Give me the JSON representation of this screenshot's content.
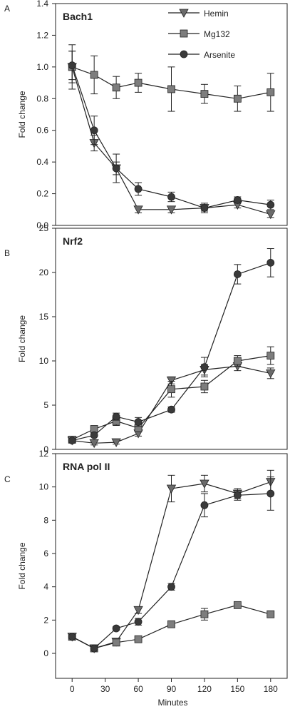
{
  "chart_data": [
    {
      "panel_letter": "A",
      "type": "line",
      "title": "Bach1",
      "ylabel": "Fold change",
      "xlabel": "",
      "x": [
        0,
        20,
        40,
        60,
        90,
        120,
        150,
        180
      ],
      "xlim": [
        -15,
        195
      ],
      "ylim": [
        0,
        1.4
      ],
      "yticks": [
        0.0,
        0.2,
        0.4,
        0.6,
        0.8,
        1.0,
        1.2,
        1.4
      ],
      "ytick_labels": [
        "0.0",
        "0.2",
        "0.4",
        "0.6",
        "0.8",
        "1.0",
        "1.2",
        "1.4"
      ],
      "show_xticks": false,
      "legend": "top-right",
      "grid": false,
      "series": [
        {
          "name": "Hemin",
          "marker": "triangle-down",
          "values": [
            1.0,
            0.52,
            0.36,
            0.1,
            0.1,
            0.11,
            0.13,
            0.07
          ],
          "errors": [
            0.1,
            0.05,
            0.04,
            0.02,
            0.02,
            0.02,
            0.02,
            0.02
          ]
        },
        {
          "name": "Mg132",
          "marker": "square",
          "values": [
            1.0,
            0.95,
            0.87,
            0.9,
            0.86,
            0.83,
            0.8,
            0.84
          ],
          "errors": [
            0.14,
            0.12,
            0.07,
            0.06,
            0.14,
            0.06,
            0.08,
            0.12
          ]
        },
        {
          "name": "Arsenite",
          "marker": "circle",
          "values": [
            1.01,
            0.6,
            0.36,
            0.23,
            0.18,
            0.11,
            0.16,
            0.13
          ],
          "errors": [
            0.09,
            0.09,
            0.09,
            0.04,
            0.03,
            0.03,
            0.02,
            0.03
          ]
        }
      ]
    },
    {
      "panel_letter": "B",
      "type": "line",
      "title": "Nrf2",
      "ylabel": "Fold change",
      "xlabel": "",
      "x": [
        0,
        20,
        40,
        60,
        90,
        120,
        150,
        180
      ],
      "xlim": [
        -15,
        195
      ],
      "ylim": [
        0,
        25
      ],
      "yticks": [
        0,
        5,
        10,
        15,
        20,
        25
      ],
      "ytick_labels": [
        "0",
        "5",
        "10",
        "15",
        "20",
        "25"
      ],
      "show_xticks": false,
      "grid": false,
      "series": [
        {
          "name": "Hemin",
          "marker": "triangle-down",
          "values": [
            1.0,
            0.7,
            0.8,
            1.8,
            7.8,
            9.0,
            9.4,
            8.6
          ],
          "errors": [
            0.2,
            0.2,
            0.2,
            0.3,
            0.4,
            0.6,
            0.5,
            0.6
          ]
        },
        {
          "name": "Mg132",
          "marker": "square",
          "values": [
            1.1,
            2.3,
            3.2,
            2.4,
            6.8,
            7.1,
            10.0,
            10.6
          ],
          "errors": [
            0.2,
            0.3,
            0.5,
            0.4,
            0.9,
            0.7,
            0.6,
            1.0
          ]
        },
        {
          "name": "Arsenite",
          "marker": "circle",
          "values": [
            1.0,
            1.6,
            3.7,
            3.1,
            4.5,
            9.3,
            19.8,
            21.1
          ],
          "errors": [
            0.2,
            0.2,
            0.4,
            0.5,
            0.3,
            1.1,
            1.1,
            1.6
          ]
        }
      ]
    },
    {
      "panel_letter": "C",
      "type": "line",
      "title": "RNA pol II",
      "ylabel": "Fold change",
      "xlabel": "Minutes",
      "x": [
        0,
        20,
        40,
        60,
        90,
        120,
        150,
        180
      ],
      "xlim": [
        -15,
        195
      ],
      "ylim": [
        -1.5,
        12
      ],
      "yticks": [
        0,
        2,
        4,
        6,
        8,
        10,
        12
      ],
      "ytick_labels": [
        "0",
        "2",
        "4",
        "6",
        "8",
        "10",
        "12"
      ],
      "xticks": [
        0,
        30,
        60,
        90,
        120,
        150,
        180
      ],
      "xtick_labels": [
        "0",
        "30",
        "60",
        "90",
        "120",
        "150",
        "180"
      ],
      "show_xticks": true,
      "grid": false,
      "series": [
        {
          "name": "Hemin",
          "marker": "triangle-down",
          "values": [
            1.0,
            0.3,
            0.7,
            2.6,
            9.9,
            10.2,
            9.6,
            10.3
          ],
          "errors": [
            0.1,
            0.1,
            0.1,
            0.2,
            0.8,
            0.5,
            0.3,
            0.7
          ]
        },
        {
          "name": "Mg132",
          "marker": "square",
          "values": [
            1.0,
            0.3,
            0.65,
            0.85,
            1.75,
            2.35,
            2.9,
            2.35
          ],
          "errors": [
            0.1,
            0.05,
            0.1,
            0.1,
            0.1,
            0.35,
            0.1,
            0.1
          ]
        },
        {
          "name": "Arsenite",
          "marker": "circle",
          "values": [
            1.0,
            0.3,
            1.5,
            1.9,
            4.0,
            8.9,
            9.5,
            9.6
          ],
          "errors": [
            0.1,
            0.05,
            0.1,
            0.2,
            0.2,
            0.7,
            0.3,
            1.0
          ]
        }
      ]
    }
  ]
}
